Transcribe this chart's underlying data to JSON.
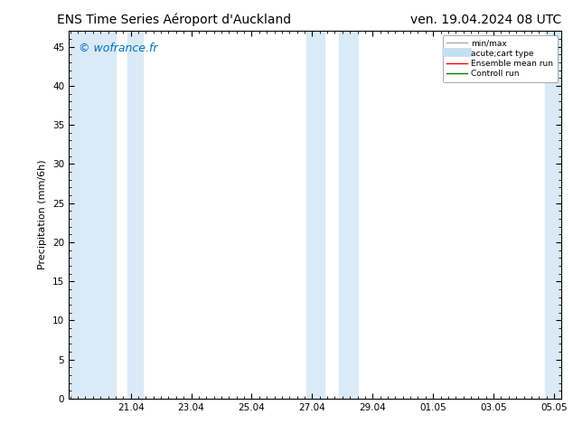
{
  "title_left": "ENS Time Series Aéroport d'Auckland",
  "title_right": "ven. 19.04.2024 08 UTC",
  "ylabel": "Precipitation (mm/6h)",
  "watermark": "© wofrance.fr",
  "watermark_color": "#0070c0",
  "ylim": [
    0,
    47
  ],
  "yticks": [
    0,
    5,
    10,
    15,
    20,
    25,
    30,
    35,
    40,
    45
  ],
  "xtick_labels": [
    "21.04",
    "23.04",
    "25.04",
    "27.04",
    "29.04",
    "01.05",
    "03.05",
    "05.05"
  ],
  "x_ticks": [
    2,
    4,
    6,
    8,
    10,
    12,
    14,
    16
  ],
  "xlim": [
    -0.05,
    16.25
  ],
  "shade_bands": [
    [
      0.0,
      1.5
    ],
    [
      1.9,
      2.4
    ],
    [
      7.8,
      8.4
    ],
    [
      8.9,
      9.5
    ],
    [
      15.7,
      16.25
    ]
  ],
  "shade_color": "#daeaf6",
  "legend_entries": [
    {
      "label": "min/max",
      "color": "#aaaaaa",
      "lw": 1.0
    },
    {
      "label": "acute;cart type",
      "color": "#c5dff0",
      "lw": 7
    },
    {
      "label": "Ensemble mean run",
      "color": "#ff0000",
      "lw": 1.0
    },
    {
      "label": "Controll run",
      "color": "#008000",
      "lw": 1.0
    }
  ],
  "bg_color": "#ffffff",
  "title_fontsize": 10,
  "label_fontsize": 8,
  "tick_fontsize": 7.5,
  "watermark_fontsize": 9
}
